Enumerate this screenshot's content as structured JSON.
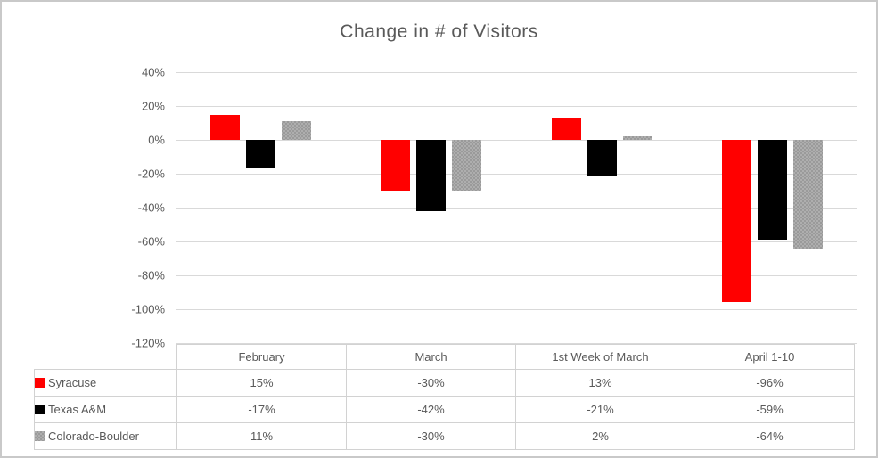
{
  "chart": {
    "title": "Change in # of Visitors",
    "text_color": "#595959",
    "gridline_color": "#d9d9d9",
    "border_color": "#c9c9c9"
  },
  "chart_data": {
    "type": "bar",
    "title": "Change in # of Visitors",
    "categories": [
      "February",
      "March",
      "1st Week of March",
      "April 1-10"
    ],
    "series": [
      {
        "name": "Syracuse",
        "color": "#ff0000",
        "pattern": false,
        "values": [
          15,
          -30,
          13,
          -96
        ]
      },
      {
        "name": "Texas A&M",
        "color": "#000000",
        "pattern": false,
        "values": [
          -17,
          -42,
          -21,
          -59
        ]
      },
      {
        "name": "Colorado-Boulder",
        "color": "#a6a6a6",
        "pattern": true,
        "values": [
          11,
          -30,
          2,
          -64
        ]
      }
    ],
    "xlabel": "",
    "ylabel": "",
    "ylim": [
      -120,
      40
    ],
    "y_tick_step": 20,
    "y_ticks": [
      "40%",
      "20%",
      "0%",
      "-20%",
      "-40%",
      "-60%",
      "-80%",
      "-100%",
      "-120%"
    ],
    "grid": true,
    "legend_position": "data-table-left",
    "value_format": "percent"
  },
  "table": {
    "headers": [
      "February",
      "March",
      "1st Week of March",
      "April 1-10"
    ],
    "rows": [
      {
        "label": "Syracuse",
        "values": [
          "15%",
          "-30%",
          "13%",
          "-96%"
        ]
      },
      {
        "label": "Texas A&M",
        "values": [
          "-17%",
          "-42%",
          "-21%",
          "-59%"
        ]
      },
      {
        "label": "Colorado-Boulder",
        "values": [
          "11%",
          "-30%",
          "2%",
          "-64%"
        ]
      }
    ]
  }
}
